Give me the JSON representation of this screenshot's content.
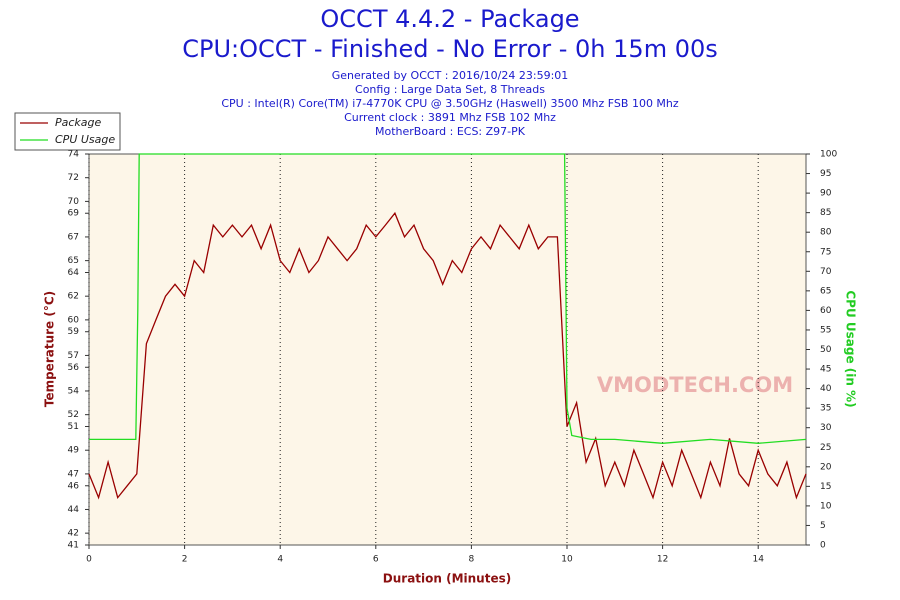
{
  "chart_data": {
    "type": "line",
    "title": "OCCT 4.4.2 - Package",
    "subtitle": "CPU:OCCT - Finished - No Error - 0h 15m 00s",
    "info": [
      "Generated by OCCT : 2016/10/24 23:59:01",
      "Config : Large Data Set, 8 Threads",
      "CPU : Intel(R) Core(TM) i7-4770K CPU @ 3.50GHz (Haswell) 3500 Mhz FSB 100 Mhz",
      "Current clock : 3891 Mhz FSB 102 Mhz",
      "MotherBoard : ECS: Z97-PK"
    ],
    "watermark": "VMODTECH.COM",
    "xlabel": "Duration (Minutes)",
    "ylabel": "Temperature (°C)",
    "y2label": "CPU Usage (in %)",
    "xlim": [
      0,
      15
    ],
    "xticks": [
      0,
      2,
      4,
      6,
      8,
      10,
      12,
      14
    ],
    "ylim": [
      41,
      74
    ],
    "yticks": [
      41,
      42,
      44,
      46,
      47,
      49,
      51,
      52,
      54,
      56,
      57,
      59,
      60,
      62,
      64,
      65,
      67,
      69,
      70,
      72,
      74
    ],
    "y2lim": [
      0,
      100
    ],
    "y2ticks": [
      0,
      5,
      10,
      15,
      20,
      25,
      30,
      35,
      40,
      45,
      50,
      55,
      60,
      65,
      70,
      75,
      80,
      85,
      90,
      95,
      100
    ],
    "grid": true,
    "series": [
      {
        "name": "Package",
        "color": "#990000",
        "x": [
          0,
          0.2,
          0.4,
          0.6,
          0.8,
          1.0,
          1.2,
          1.4,
          1.6,
          1.8,
          2.0,
          2.2,
          2.4,
          2.6,
          2.8,
          3.0,
          3.2,
          3.4,
          3.6,
          3.8,
          4.0,
          4.2,
          4.4,
          4.6,
          4.8,
          5.0,
          5.2,
          5.4,
          5.6,
          5.8,
          6.0,
          6.2,
          6.4,
          6.6,
          6.8,
          7.0,
          7.2,
          7.4,
          7.6,
          7.8,
          8.0,
          8.2,
          8.4,
          8.6,
          8.8,
          9.0,
          9.2,
          9.4,
          9.6,
          9.8,
          10.0,
          10.2,
          10.4,
          10.6,
          10.8,
          11.0,
          11.2,
          11.4,
          11.6,
          11.8,
          12.0,
          12.2,
          12.4,
          12.6,
          12.8,
          13.0,
          13.2,
          13.4,
          13.6,
          13.8,
          14.0,
          14.2,
          14.4,
          14.6,
          14.8,
          15.0
        ],
        "values": [
          47,
          45,
          48,
          45,
          46,
          47,
          58,
          60,
          62,
          63,
          62,
          65,
          64,
          68,
          67,
          68,
          67,
          68,
          66,
          68,
          65,
          64,
          66,
          64,
          65,
          67,
          66,
          65,
          66,
          68,
          67,
          68,
          69,
          67,
          68,
          66,
          65,
          63,
          65,
          64,
          66,
          67,
          66,
          68,
          67,
          66,
          68,
          66,
          67,
          67,
          51,
          53,
          48,
          50,
          46,
          48,
          46,
          49,
          47,
          45,
          48,
          46,
          49,
          47,
          45,
          48,
          46,
          50,
          47,
          46,
          49,
          47,
          46,
          48,
          45,
          47
        ]
      },
      {
        "name": "CPU Usage",
        "color": "#22dd22",
        "axis": "y2",
        "x": [
          0,
          0.5,
          0.98,
          1.02,
          1.05,
          9.95,
          10.0,
          10.1,
          10.5,
          11,
          12,
          13,
          14,
          15
        ],
        "values": [
          27,
          27,
          27,
          60,
          100,
          100,
          35,
          28,
          27,
          27,
          26,
          27,
          26,
          27
        ]
      }
    ]
  }
}
